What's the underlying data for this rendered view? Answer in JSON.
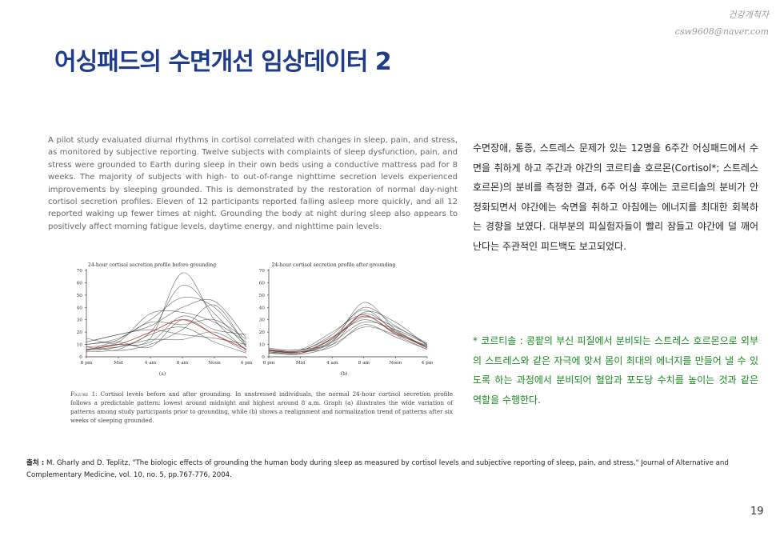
{
  "watermark": {
    "line1": "건강개척자",
    "line2": "csw9608@naver.com"
  },
  "slide": {
    "title": "어싱패드의 수면개선 임상데이터 2",
    "page_number": "19",
    "abstract": "A pilot study evaluated diurnal rhythms in cortisol correlated with changes in sleep, pain, and stress, as monitored by subjective reporting. Twelve subjects with complaints of sleep dysfunction, pain, and stress were grounded to Earth during sleep in their own beds using a conductive mattress pad for 8 weeks. The majority of subjects with high- to out-of-range nighttime secretion levels experienced improvements by sleeping grounded. This is demonstrated by the restoration of normal day-night cortisol secretion profiles. Eleven of 12 participants reported falling asleep more quickly, and all 12 reported waking up fewer times at night. Grounding the body at night during sleep also appears to positively affect morning fatigue levels, daytime energy, and nighttime pain levels.",
    "figure_caption_label": "Figure 1:",
    "figure_caption": "Cortisol levels before and after grounding. In unstressed individuals, the normal 24-hour cortisol secretion profile follows a predictable pattern: lowest around midnight and highest around 8 a.m. Graph (a) illustrates the wide variation of patterns among study participants prior to grounding, while (b) shows a realignment and normalization trend of patterns after six weeks of sleeping grounded.",
    "description": "수면장애, 통증, 스트레스 문제가 있는 12명을 6주간 어싱패드에서 수면을 취하게 하고 주간과 야간의 코르티솔 호르몬(Cortisol*; 스트레스 호르몬)의 분비를 측정한 결과, 6주 어싱 후에는 코르티솔의 분비가 안정화되면서 야간에는 숙면을 취하고 아침에는 에너지를 최대한 회복하는 경향을 보였다. 대부분의 피실험자들이 빨리 잠들고 야간에 덜 깨어난다는 주관적인 피드백도 보고되었다.",
    "note": "* 코르티솔 : 콩팥의 부신 피질에서 분비되는 스트레스 호르몬으로 외부의 스트레스와 같은 자극에 맞서 몸이 최대의 에너지를 만들어 낼 수 있도록 하는 과정에서 분비되어 혈압과 포도당 수치를 높이는 것과 같은 역할을 수행한다.",
    "source_label": "출처 :",
    "source": "M. Gharly and D. Teplitz, \"The biologic effects of grounding the human body during sleep as measured by cortisol levels and subjective reporting of sleep, pain, and stress,\" Journal of Alternative and Complementary Medicine, vol. 10, no. 5, pp.767-776, 2004."
  },
  "colors": {
    "title": "#1f3c8c",
    "note": "#178a1f",
    "highlight_series": "#c0392b",
    "series": "#3a3a3a"
  },
  "chart_data": [
    {
      "type": "line",
      "title": "24-hour cortisol secretion profile before grounding",
      "panel_label": "(a)",
      "categories": [
        "8 pm",
        "Mid",
        "4 am",
        "8 am",
        "Noon",
        "4 pm"
      ],
      "ylim": [
        0,
        70
      ],
      "yticks": [
        "0",
        "10",
        "20",
        "30",
        "40",
        "50",
        "60",
        "70"
      ],
      "series": [
        {
          "values": [
            8,
            10,
            15,
            68,
            30,
            5
          ],
          "highlight": false
        },
        {
          "values": [
            5,
            8,
            20,
            58,
            35,
            8
          ],
          "highlight": false
        },
        {
          "values": [
            10,
            15,
            30,
            48,
            40,
            10
          ],
          "highlight": false
        },
        {
          "values": [
            12,
            18,
            25,
            40,
            45,
            15
          ],
          "highlight": false
        },
        {
          "values": [
            6,
            12,
            35,
            36,
            28,
            12
          ],
          "highlight": false
        },
        {
          "values": [
            15,
            10,
            12,
            33,
            22,
            18
          ],
          "highlight": false
        },
        {
          "values": [
            5,
            14,
            28,
            26,
            30,
            14
          ],
          "highlight": false
        },
        {
          "values": [
            8,
            5,
            10,
            22,
            42,
            8
          ],
          "highlight": false
        },
        {
          "values": [
            12,
            18,
            22,
            18,
            15,
            10
          ],
          "highlight": false
        },
        {
          "values": [
            6,
            8,
            14,
            14,
            20,
            6
          ],
          "highlight": false
        },
        {
          "values": [
            10,
            12,
            8,
            30,
            18,
            4
          ],
          "highlight": false
        },
        {
          "values": [
            4,
            6,
            18,
            24,
            12,
            3
          ],
          "highlight": false
        },
        {
          "values": [
            6,
            10,
            20,
            30,
            18,
            6
          ],
          "highlight": true
        }
      ]
    },
    {
      "type": "line",
      "title": "24-hour cortisol secretion profile after grounding",
      "panel_label": "(b)",
      "categories": [
        "8 pm",
        "Mid",
        "4 am",
        "8 am",
        "Noon",
        "4 pm"
      ],
      "ylim": [
        0,
        70
      ],
      "yticks": [
        "0",
        "10",
        "20",
        "30",
        "40",
        "50",
        "60",
        "70"
      ],
      "series": [
        {
          "values": [
            5,
            4,
            12,
            44,
            22,
            8
          ],
          "highlight": false
        },
        {
          "values": [
            4,
            3,
            15,
            40,
            25,
            10
          ],
          "highlight": false
        },
        {
          "values": [
            6,
            5,
            18,
            38,
            20,
            7
          ],
          "highlight": false
        },
        {
          "values": [
            3,
            2,
            10,
            36,
            28,
            9
          ],
          "highlight": false
        },
        {
          "values": [
            7,
            6,
            20,
            34,
            18,
            6
          ],
          "highlight": false
        },
        {
          "values": [
            5,
            4,
            14,
            32,
            24,
            11
          ],
          "highlight": false
        },
        {
          "values": [
            4,
            5,
            16,
            30,
            20,
            8
          ],
          "highlight": false
        },
        {
          "values": [
            6,
            3,
            12,
            28,
            22,
            10
          ],
          "highlight": false
        },
        {
          "values": [
            3,
            4,
            8,
            26,
            16,
            6
          ],
          "highlight": false
        },
        {
          "values": [
            5,
            6,
            10,
            24,
            18,
            9
          ],
          "highlight": false
        },
        {
          "values": [
            4,
            3,
            13,
            35,
            21,
            7
          ],
          "highlight": false
        },
        {
          "values": [
            6,
            4,
            15,
            33,
            19,
            8
          ],
          "highlight": true
        }
      ]
    }
  ]
}
